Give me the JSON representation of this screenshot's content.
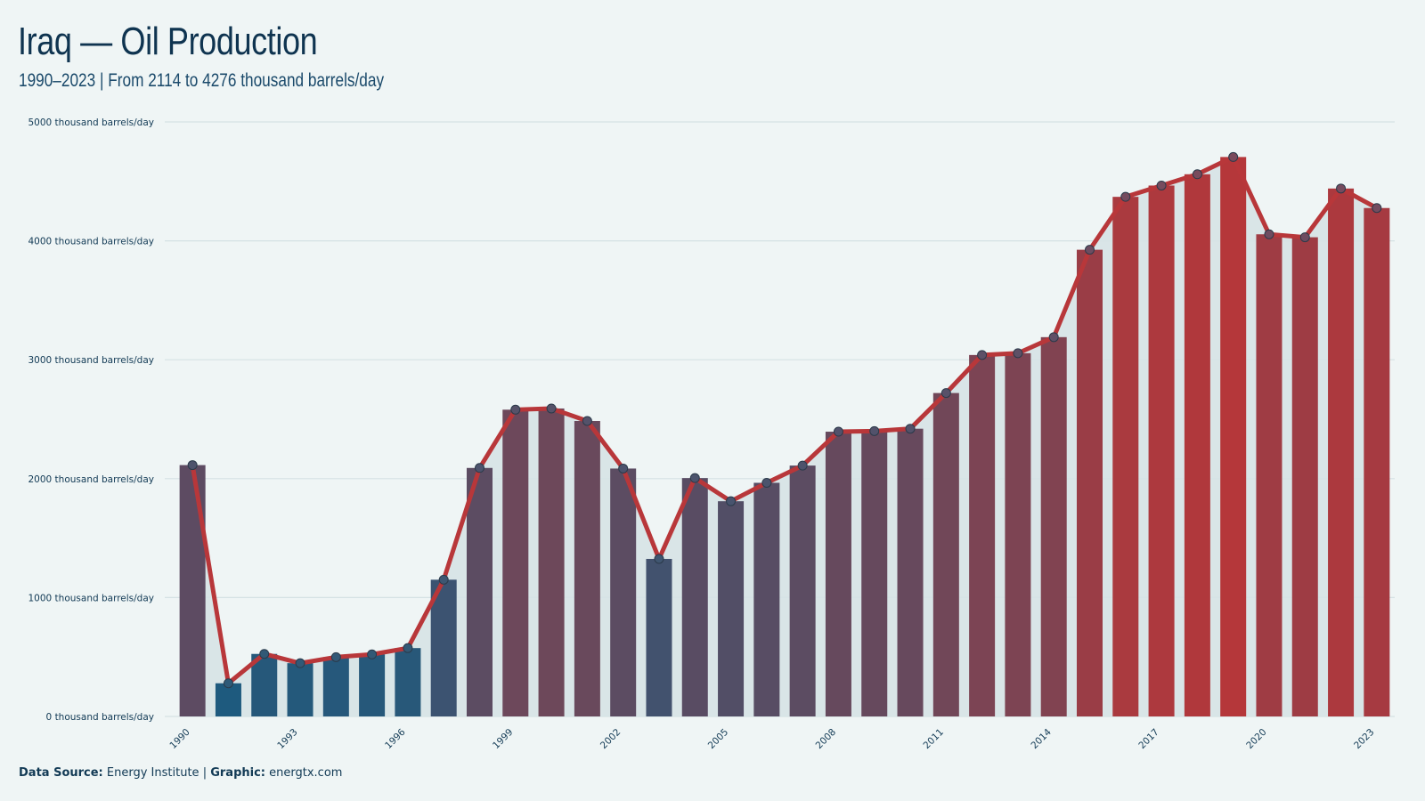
{
  "header": {
    "title": "Iraq  — Oil Production",
    "subtitle": "1990–2023 | From 2114 to 4276 thousand barrels/day"
  },
  "footer": {
    "source_label": "Data  Source:",
    "source_value": "Energy Institute",
    "separator": "|",
    "graphic_label": "Graphic:",
    "graphic_value": "energtx.com"
  },
  "colors": {
    "background": "#eff5f5",
    "line": "#b8373a",
    "low_bar": "#1e5a7e",
    "high_bar": "#b5373a",
    "area": "#d6e3e6",
    "grid": "#d5e2e4"
  },
  "chart_data": {
    "type": "bar",
    "title": "Iraq  — Oil Production",
    "subtitle": "1990–2023 | From 2114 to 4276 thousand barrels/day",
    "xlabel": "",
    "ylabel": "",
    "ylim": [
      0,
      5000
    ],
    "y_ticks": [
      0,
      1000,
      2000,
      3000,
      4000,
      5000
    ],
    "y_tick_suffix": " thousand barrels/day",
    "x_tick_labels": [
      "1990",
      "1993",
      "1996",
      "1999",
      "2002",
      "2005",
      "2008",
      "2011",
      "2014",
      "2017",
      "2020",
      "2023"
    ],
    "grid": true,
    "overlay": "line with markers and shaded area",
    "categories": [
      "1990",
      "1991",
      "1992",
      "1993",
      "1994",
      "1995",
      "1996",
      "1997",
      "1998",
      "1999",
      "2000",
      "2001",
      "2002",
      "2003",
      "2004",
      "2005",
      "2006",
      "2007",
      "2008",
      "2009",
      "2010",
      "2011",
      "2012",
      "2013",
      "2014",
      "2015",
      "2016",
      "2017",
      "2018",
      "2019",
      "2020",
      "2021",
      "2022",
      "2023"
    ],
    "series": [
      {
        "values": [
          2114,
          279,
          526,
          448,
          499,
          522,
          575,
          1150,
          2090,
          2580,
          2590,
          2485,
          2085,
          1325,
          2005,
          1810,
          1965,
          2110,
          2395,
          2400,
          2420,
          2720,
          3040,
          3055,
          3190,
          3925,
          4370,
          4465,
          4560,
          4705,
          4055,
          4030,
          4440,
          4276
        ]
      }
    ]
  }
}
